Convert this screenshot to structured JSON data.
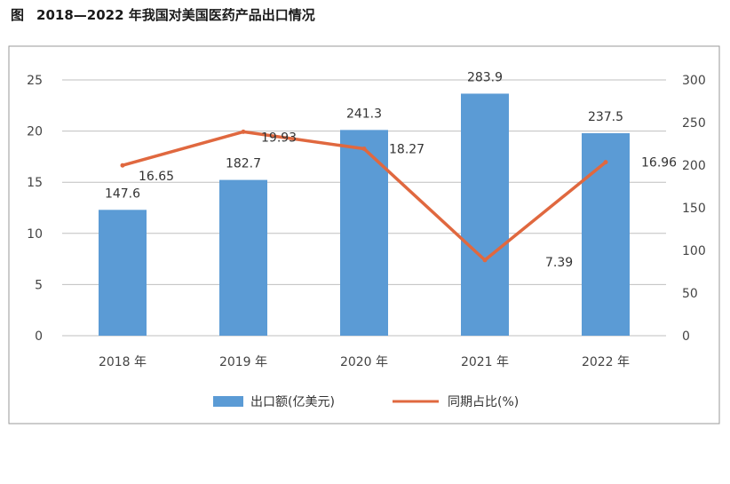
{
  "figure": {
    "label": "图",
    "title": "2018—2022 年我国对美国医药产品出口情况"
  },
  "chart_data": {
    "type": "bar",
    "categories": [
      "2018 年",
      "2019 年",
      "2020 年",
      "2021 年",
      "2022 年"
    ],
    "series": [
      {
        "name": "出口额(亿美元)",
        "type": "bar",
        "axis": "right",
        "values": [
          147.6,
          182.7,
          241.3,
          283.9,
          237.5
        ],
        "labels": [
          "147.6",
          "182.7",
          "241.3",
          "283.9",
          "237.5"
        ],
        "color": "#5b9bd5"
      },
      {
        "name": "同期占比(%)",
        "type": "line",
        "axis": "left",
        "values": [
          16.65,
          19.93,
          18.27,
          7.39,
          16.96
        ],
        "labels": [
          "16.65",
          "19.93",
          "18.27",
          "7.39",
          "16.96"
        ],
        "color": "#e0683f"
      }
    ],
    "left_axis": {
      "min": 0,
      "max": 25,
      "ticks": [
        "0",
        "5",
        "10",
        "15",
        "20",
        "25"
      ]
    },
    "right_axis": {
      "min": 0,
      "max": 300,
      "ticks": [
        "0",
        "50",
        "100",
        "150",
        "200",
        "250",
        "300"
      ]
    },
    "grid": true,
    "legend": "bottom",
    "colors": {
      "bar": "#5b9bd5",
      "line": "#e0683f",
      "grid": "#bfbfbf",
      "frame": "#9a9a9a"
    }
  }
}
